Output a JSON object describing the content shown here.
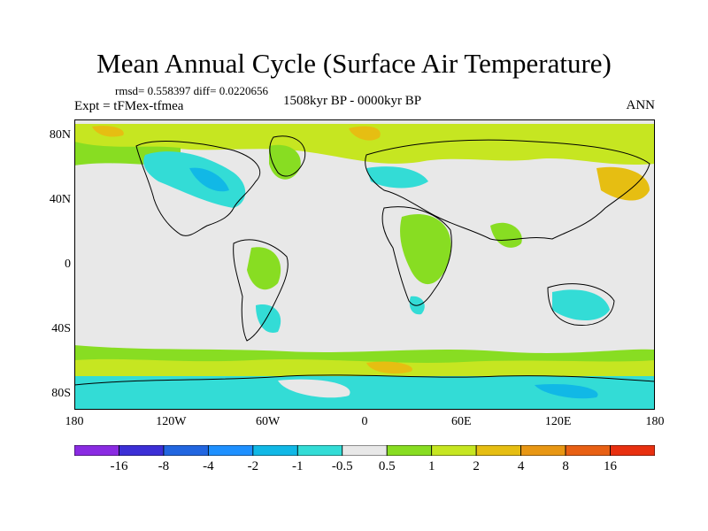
{
  "title": "Mean Annual Cycle (Surface Air Temperature)",
  "stats": "rmsd= 0.558397 diff= 0.0220656",
  "experiment": "Expt = tFMex-tfmea",
  "period": "1508kyr BP - 0000kyr BP",
  "season": "ANN",
  "lat_ticks": [
    {
      "label": "80N",
      "value": 80
    },
    {
      "label": "40N",
      "value": 40
    },
    {
      "label": "0",
      "value": 0
    },
    {
      "label": "40S",
      "value": -40
    },
    {
      "label": "80S",
      "value": -80
    }
  ],
  "lon_ticks": [
    {
      "label": "180",
      "value": -180
    },
    {
      "label": "120W",
      "value": -120
    },
    {
      "label": "60W",
      "value": -60
    },
    {
      "label": "0",
      "value": 0
    },
    {
      "label": "60E",
      "value": 60
    },
    {
      "label": "120E",
      "value": 120
    },
    {
      "label": "180",
      "value": 180
    }
  ],
  "colorbar": {
    "colors": [
      "#8a2be2",
      "#3c2fd6",
      "#2266e0",
      "#1e90ff",
      "#11b8e6",
      "#33dcd6",
      "#e8e8e8",
      "#88dd22",
      "#c6e621",
      "#e6be12",
      "#e89714",
      "#e86014",
      "#e83010"
    ],
    "labels": [
      "-16",
      "-8",
      "-4",
      "-2",
      "-1",
      "-0.5",
      "0.5",
      "1",
      "2",
      "4",
      "8",
      "16"
    ]
  },
  "colors": {
    "background": "#e8e8e8",
    "coast": "#000000"
  }
}
